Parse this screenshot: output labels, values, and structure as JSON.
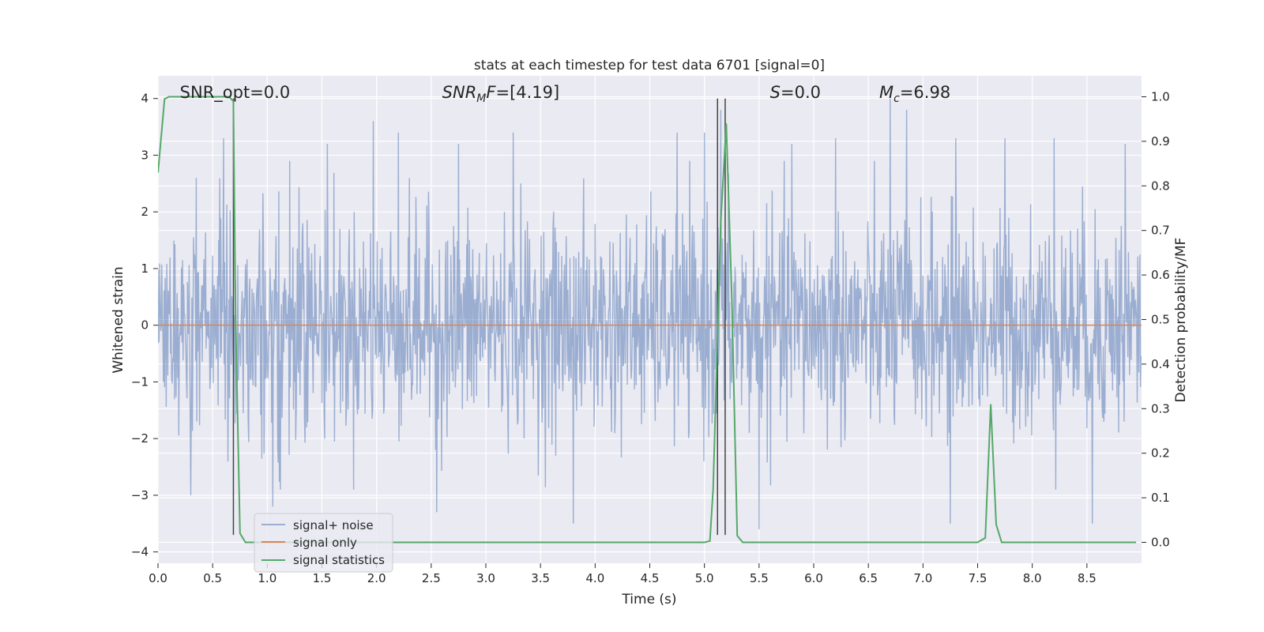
{
  "chart_data": {
    "type": "line",
    "title": "stats at each timestep for test data 6701 [signal=0]",
    "xlabel": "Time (s)",
    "ylabel_left": "Whitened strain",
    "ylabel_right": "Detection probability/MF",
    "xlim": [
      0.0,
      9.0
    ],
    "ylim_left": [
      -4.2,
      4.4
    ],
    "ylim_right": [
      -0.047,
      1.047
    ],
    "x_ticks": [
      "0.0",
      "0.5",
      "1.0",
      "1.5",
      "2.0",
      "2.5",
      "3.0",
      "3.5",
      "4.0",
      "4.5",
      "5.0",
      "5.5",
      "6.0",
      "6.5",
      "7.0",
      "7.5",
      "8.0",
      "8.5"
    ],
    "y_ticks_left": [
      "4",
      "3",
      "2",
      "1",
      "0",
      "−1",
      "−2",
      "−3",
      "−4"
    ],
    "y_ticks_right": [
      "1.0",
      "0.9",
      "0.8",
      "0.7",
      "0.6",
      "0.5",
      "0.4",
      "0.3",
      "0.2",
      "0.1",
      "0.0"
    ],
    "grid": true,
    "legend_position": "lower-left",
    "annotations": [
      {
        "parts": [
          {
            "t": "SNR_opt=0.0",
            "i": false
          }
        ],
        "x": 0.2
      },
      {
        "parts": [
          {
            "t": "SNR",
            "i": true
          },
          {
            "t": "M",
            "i": true,
            "sub": true
          },
          {
            "t": "F",
            "i": true
          },
          {
            "t": "=[4.19]",
            "i": false
          }
        ],
        "x": 2.6
      },
      {
        "parts": [
          {
            "t": "S",
            "i": true
          },
          {
            "t": "=0.0",
            "i": false
          }
        ],
        "x": 5.6
      },
      {
        "parts": [
          {
            "t": "M",
            "i": true
          },
          {
            "t": "c",
            "i": true,
            "sub": true
          },
          {
            "t": "=6.98",
            "i": false
          }
        ],
        "x": 6.6
      }
    ],
    "series": [
      {
        "name": "signal+ noise",
        "axis": "left",
        "color": "#4c72b0",
        "description_values": "whitened noise, approx. Gaussian, amplitude mostly within ±2, peaks up to ~4",
        "peaks": [
          [
            0.35,
            2.6
          ],
          [
            0.6,
            3.3
          ],
          [
            1.55,
            3.2
          ],
          [
            1.97,
            3.6
          ],
          [
            2.2,
            3.4
          ],
          [
            2.75,
            3.2
          ],
          [
            3.25,
            3.4
          ],
          [
            4.75,
            3.4
          ],
          [
            5.0,
            3.4
          ],
          [
            5.15,
            3.8
          ],
          [
            5.8,
            3.2
          ],
          [
            6.2,
            3.3
          ],
          [
            6.7,
            4.0
          ],
          [
            6.85,
            3.8
          ],
          [
            7.3,
            3.3
          ],
          [
            7.75,
            3.3
          ],
          [
            8.2,
            3.3
          ],
          [
            8.85,
            3.2
          ],
          [
            0.3,
            -3.0
          ],
          [
            1.05,
            -3.2
          ],
          [
            2.55,
            -3.3
          ],
          [
            3.8,
            -3.5
          ],
          [
            5.5,
            -3.6
          ],
          [
            7.25,
            -3.5
          ],
          [
            8.55,
            -3.5
          ]
        ]
      },
      {
        "name": "signal only",
        "axis": "left",
        "color": "#dd8452",
        "x": [
          0.0,
          9.0
        ],
        "y": [
          0.0,
          0.0
        ]
      },
      {
        "name": "signal statistics",
        "axis": "right",
        "color": "#55a868",
        "x": [
          0.0,
          0.06,
          0.1,
          0.15,
          0.2,
          0.65,
          0.69,
          0.71,
          0.75,
          0.8,
          0.85,
          5.0,
          5.05,
          5.08,
          5.15,
          5.2,
          5.25,
          5.3,
          5.35,
          7.5,
          7.57,
          7.62,
          7.67,
          7.72,
          7.78,
          8.95
        ],
        "y": [
          0.83,
          0.995,
          1.0,
          1.0,
          1.0,
          1.0,
          0.99,
          0.5,
          0.02,
          0.0,
          0.0,
          0.0,
          0.003,
          0.12,
          0.72,
          0.94,
          0.55,
          0.015,
          0.0,
          0.0,
          0.01,
          0.31,
          0.04,
          0.0,
          0.0,
          0.0
        ]
      }
    ],
    "vertical_lines": [
      {
        "x": 0.69,
        "ymax": 4.0,
        "ymin": -3.7,
        "color": "#444444"
      },
      {
        "x": 5.12,
        "ymax": 4.0,
        "ymin": -3.7,
        "color": "#444444"
      },
      {
        "x": 5.19,
        "ymax": 4.0,
        "ymin": -3.7,
        "color": "#444444"
      }
    ]
  }
}
